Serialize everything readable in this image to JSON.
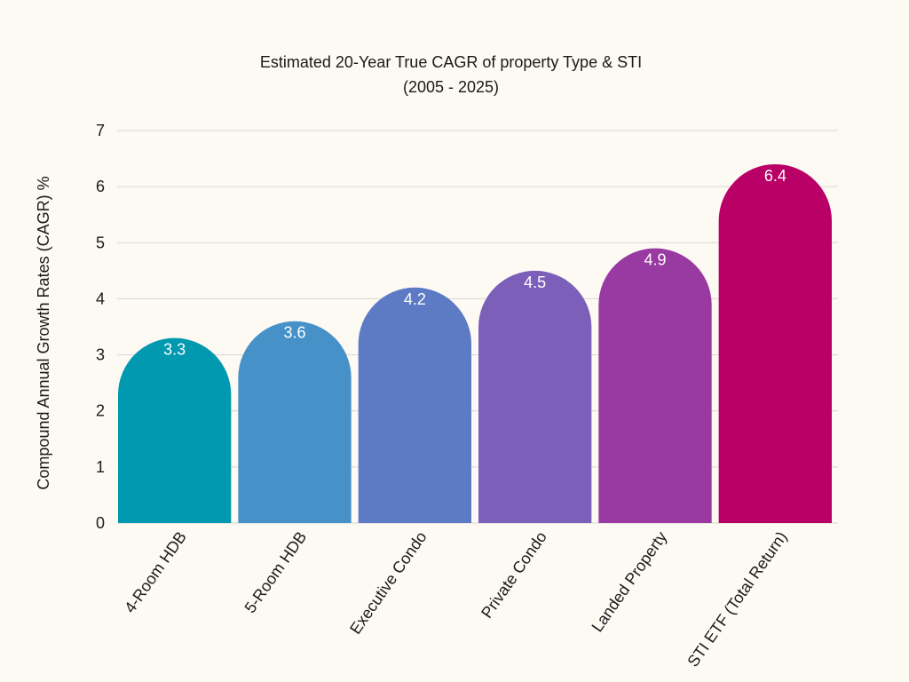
{
  "chart_data": {
    "type": "bar",
    "title_line1": "Estimated 20-Year  True CAGR of property Type & STI",
    "title_line2": "(2005 - 2025)",
    "xlabel": "",
    "ylabel": "Compound Annual Growth Rates (CAGR) %",
    "ylim": [
      0,
      7
    ],
    "yticks": [
      "0",
      "1",
      "2",
      "3",
      "4",
      "5",
      "6",
      "7"
    ],
    "grid": true,
    "categories": [
      "4-Room HDB",
      "5-Room HDB",
      "Executive Condo",
      "Private  Condo",
      "Landed Property",
      "STI ETF (Total Return)"
    ],
    "values": [
      3.3,
      3.6,
      4.2,
      4.5,
      4.9,
      6.4
    ],
    "value_labels": [
      "3.3",
      "3.6",
      "4.2",
      "4.5",
      "4.9",
      "6.4"
    ],
    "colors": [
      "#0099b0",
      "#4692c8",
      "#5c7bc4",
      "#7b5fb9",
      "#9939a2",
      "#b90066"
    ],
    "background": "#fdf9f3",
    "gridline_color": "#d9d5cf",
    "label_color": "#ffffff",
    "text_color": "#1a1a1a"
  }
}
